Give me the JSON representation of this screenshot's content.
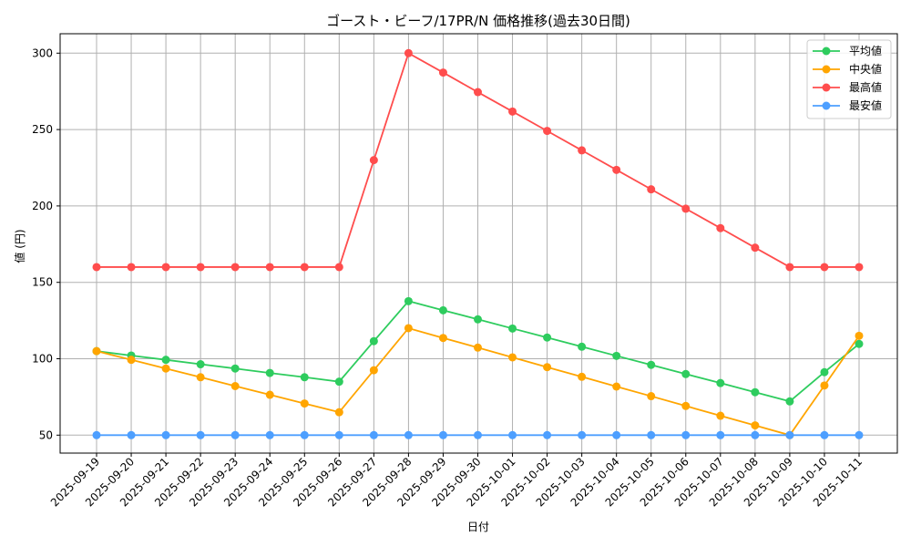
{
  "chart_data": {
    "type": "line",
    "title": "ゴースト・ビーフ/17PR/N 価格推移(過去30日間)",
    "xlabel": "日付",
    "ylabel": "値 (円)",
    "ylim": [
      38,
      313
    ],
    "yticks": [
      50,
      100,
      150,
      200,
      250,
      300
    ],
    "grid": true,
    "legend_position": "upper right",
    "categories": [
      "2025-09-19",
      "2025-09-20",
      "2025-09-21",
      "2025-09-22",
      "2025-09-23",
      "2025-09-24",
      "2025-09-25",
      "2025-09-26",
      "2025-09-27",
      "2025-09-28",
      "2025-09-29",
      "2025-09-30",
      "2025-10-01",
      "2025-10-02",
      "2025-10-03",
      "2025-10-04",
      "2025-10-05",
      "2025-10-06",
      "2025-10-07",
      "2025-10-08",
      "2025-10-09",
      "2025-10-10",
      "2025-10-11"
    ],
    "series": [
      {
        "name": "平均値",
        "color": "#2ecc5e",
        "values": [
          105,
          102.1,
          99.3,
          96.4,
          93.6,
          90.7,
          87.9,
          85,
          111.5,
          137.7,
          131.7,
          125.8,
          119.8,
          113.9,
          107.9,
          101.9,
          96,
          90,
          84.1,
          78.1,
          72.1,
          91.2,
          109.7
        ]
      },
      {
        "name": "中央値",
        "color": "#ffa500",
        "values": [
          105,
          99.3,
          93.6,
          87.9,
          82.1,
          76.4,
          70.7,
          65,
          92.5,
          120,
          113.6,
          107.3,
          100.9,
          94.5,
          88.2,
          81.8,
          75.5,
          69.1,
          62.7,
          56.4,
          50,
          82.5,
          115
        ]
      },
      {
        "name": "最高値",
        "color": "#ff4d4d",
        "values": [
          160,
          160,
          160,
          160,
          160,
          160,
          160,
          160,
          230,
          300,
          287.3,
          274.5,
          261.8,
          249.1,
          236.4,
          223.6,
          210.9,
          198.2,
          185.5,
          172.7,
          160,
          160,
          160
        ]
      },
      {
        "name": "最安値",
        "color": "#4d9fff",
        "values": [
          50,
          50,
          50,
          50,
          50,
          50,
          50,
          50,
          50,
          50,
          50,
          50,
          50,
          50,
          50,
          50,
          50,
          50,
          50,
          50,
          50,
          50,
          50
        ]
      }
    ]
  }
}
